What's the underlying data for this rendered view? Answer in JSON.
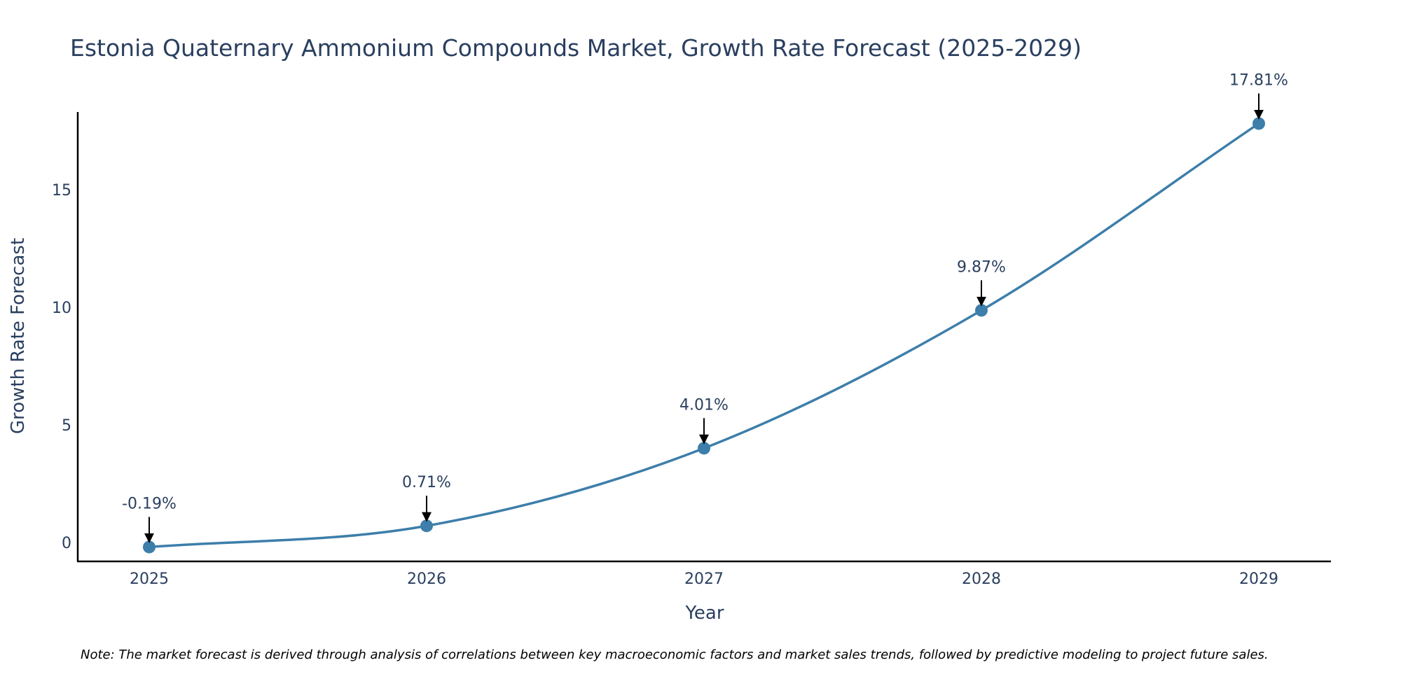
{
  "chart_data": {
    "type": "line",
    "title": "Estonia Quaternary Ammonium Compounds Market, Growth Rate Forecast (2025-2029)",
    "xlabel": "Year",
    "ylabel": "Growth Rate Forecast",
    "categories": [
      "2025",
      "2026",
      "2027",
      "2028",
      "2029"
    ],
    "series": [
      {
        "name": "Growth Rate Forecast",
        "values": [
          -0.19,
          0.71,
          4.01,
          9.87,
          17.81
        ],
        "labels": [
          "-0.19%",
          "0.71%",
          "4.01%",
          "9.87%",
          "17.81%"
        ]
      }
    ],
    "ylim": [
      -0.8,
      18.3
    ],
    "yticks": [
      0,
      5,
      10,
      15
    ],
    "ytick_labels": [
      "0",
      "5",
      "10",
      "15"
    ],
    "grid": false,
    "line_color": "#3d7eaa",
    "marker_color": "#3d7eaa",
    "arrow_color": "#000000",
    "text_color": "#2a3f5f"
  },
  "note": "Note: The market forecast is derived through analysis of correlations between key macroeconomic factors and market sales trends, followed by predictive modeling to project future sales."
}
